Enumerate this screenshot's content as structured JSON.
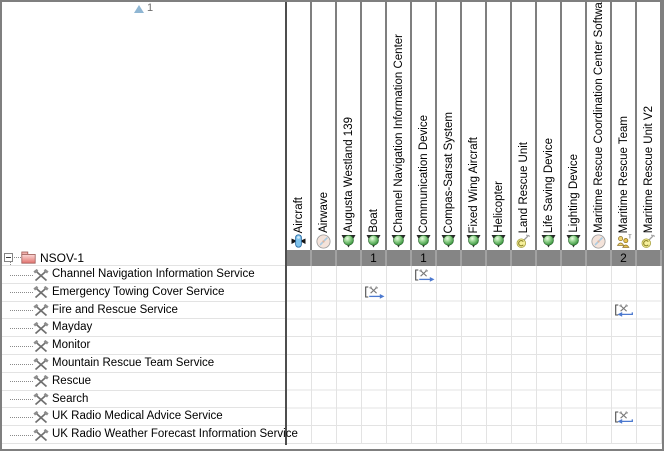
{
  "matrix": {
    "corner": {
      "sort_icon": "sort-ascending-triangle",
      "sort_order": "1"
    },
    "columns": [
      {
        "label": "Aircraft",
        "icon": "aircraft",
        "summary": ""
      },
      {
        "label": "Airwave",
        "icon": "disc",
        "summary": ""
      },
      {
        "label": "Augusta Westland 139",
        "icon": "resource",
        "summary": ""
      },
      {
        "label": "Boat",
        "icon": "resource",
        "summary": "1"
      },
      {
        "label": "Channel Navigation Information Center",
        "icon": "resource",
        "summary": ""
      },
      {
        "label": "Communication Device",
        "icon": "resource",
        "summary": "1"
      },
      {
        "label": "Compas-Sarsat System",
        "icon": "resource",
        "summary": ""
      },
      {
        "label": "Fixed Wing Aircraft",
        "icon": "resource",
        "summary": ""
      },
      {
        "label": "Helicopter",
        "icon": "resource",
        "summary": ""
      },
      {
        "label": "Land Rescue Unit",
        "icon": "component",
        "summary": ""
      },
      {
        "label": "Life Saving Device",
        "icon": "resource",
        "summary": ""
      },
      {
        "label": "Lighting Device",
        "icon": "resource",
        "summary": ""
      },
      {
        "label": "Maritime Rescue Coordination Center Software",
        "icon": "disc",
        "summary": ""
      },
      {
        "label": "Maritime Rescue Team",
        "icon": "team",
        "summary": "2"
      },
      {
        "label": "Maritime Rescue Unit V2",
        "icon": "component",
        "summary": ""
      }
    ],
    "rows": {
      "root": {
        "label": "NSOV-1",
        "icon": "package",
        "expander": "collapse"
      },
      "children": [
        {
          "label": "Channel Navigation Information Service",
          "icon": "service"
        },
        {
          "label": "Emergency Towing Cover Service",
          "icon": "service"
        },
        {
          "label": "Fire and Rescue Service",
          "icon": "service"
        },
        {
          "label": "Mayday",
          "icon": "service"
        },
        {
          "label": "Monitor",
          "icon": "service"
        },
        {
          "label": "Mountain Rescue Team Service",
          "icon": "service"
        },
        {
          "label": "Rescue",
          "icon": "service"
        },
        {
          "label": "Search",
          "icon": "service"
        },
        {
          "label": "UK Radio Medical Advice Service",
          "icon": "service"
        },
        {
          "label": "UK Radio Weather Forecast Information Service",
          "icon": "service"
        }
      ]
    },
    "cells": [
      {
        "row": 0,
        "col": 5,
        "row_label": "Channel Navigation Information Service",
        "col_label": "Communication Device",
        "direction": "right"
      },
      {
        "row": 1,
        "col": 3,
        "row_label": "Emergency Towing Cover Service",
        "col_label": "Boat",
        "direction": "right"
      },
      {
        "row": 2,
        "col": 13,
        "row_label": "Fire and Rescue Service",
        "col_label": "Maritime Rescue Team",
        "direction": "left"
      },
      {
        "row": 8,
        "col": 13,
        "row_label": "UK Radio Medical Advice Service",
        "col_label": "Maritime Rescue Team",
        "direction": "left"
      }
    ],
    "colors": {
      "summary_row_bg": "#858585",
      "relation_arrow": "#4c79cf",
      "grid_line": "#e3e3e3",
      "header_line": "#7f7f7f"
    }
  }
}
